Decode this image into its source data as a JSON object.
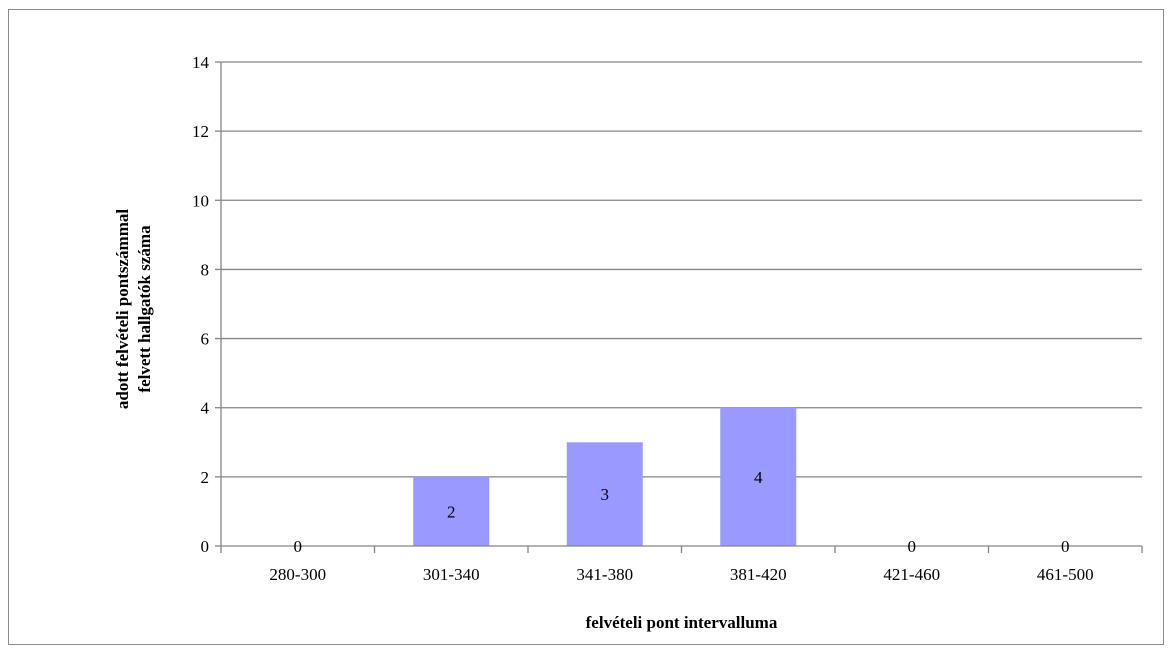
{
  "chart_data": {
    "type": "bar",
    "categories": [
      "280-300",
      "301-340",
      "341-380",
      "381-420",
      "421-460",
      "461-500"
    ],
    "values": [
      0,
      2,
      3,
      4,
      0,
      0
    ],
    "data_labels": [
      "0",
      "2",
      "3",
      "4",
      "0",
      "0"
    ],
    "xlabel": "felvételi pont intervalluma",
    "ylabel_lines": [
      "adott felvételi pontszámmal",
      "felvett hallgatók száma"
    ],
    "ylim": [
      0,
      14
    ],
    "yticks": [
      "0",
      "2",
      "4",
      "6",
      "8",
      "10",
      "12",
      "14"
    ],
    "grid": true,
    "legend": "none",
    "colors": {
      "bar": "#9999ff",
      "grid": "#868686",
      "axis": "#868686"
    }
  }
}
